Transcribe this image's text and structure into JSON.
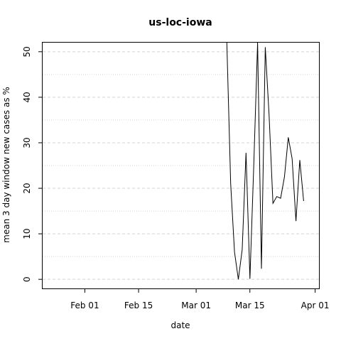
{
  "chart_data": {
    "type": "line",
    "title": "us-loc-iowa",
    "xlabel": "date",
    "ylabel": "mean  3  day window new cases as %",
    "x_tick_labels": [
      "Feb 01",
      "Feb 15",
      "Mar 01",
      "Mar 15",
      "Apr 01"
    ],
    "x_ticks": [
      "2020-02-01",
      "2020-02-15",
      "2020-03-01",
      "2020-03-15",
      "2020-04-01"
    ],
    "y_ticks": [
      0,
      10,
      20,
      30,
      40,
      50
    ],
    "xlim": [
      "2020-01-21",
      "2020-04-02"
    ],
    "ylim": [
      -2,
      52
    ],
    "grid": {
      "horizontal": true,
      "vertical": false,
      "style": "dashed",
      "color": "#d3d3d3"
    },
    "line_color": "#000000",
    "series": [
      {
        "x": [
          "2020-03-09",
          "2020-03-10",
          "2020-03-11",
          "2020-03-12",
          "2020-03-13",
          "2020-03-14",
          "2020-03-15",
          "2020-03-16",
          "2020-03-17",
          "2020-03-18",
          "2020-03-19",
          "2020-03-20",
          "2020-03-21",
          "2020-03-22",
          "2020-03-23",
          "2020-03-24",
          "2020-03-25",
          "2020-03-26",
          "2020-03-27",
          "2020-03-28",
          "2020-03-29",
          "2020-03-30",
          "2020-03-31"
        ],
        "y": [
          53.0,
          21.0,
          6.0,
          0.0,
          6.5,
          27.8,
          0.1,
          25.0,
          52.0,
          2.3,
          51.0,
          36.0,
          16.7,
          18.2,
          17.8,
          22.5,
          31.2,
          26.5,
          12.8,
          26.2,
          17.2,
          null,
          null
        ]
      }
    ]
  }
}
